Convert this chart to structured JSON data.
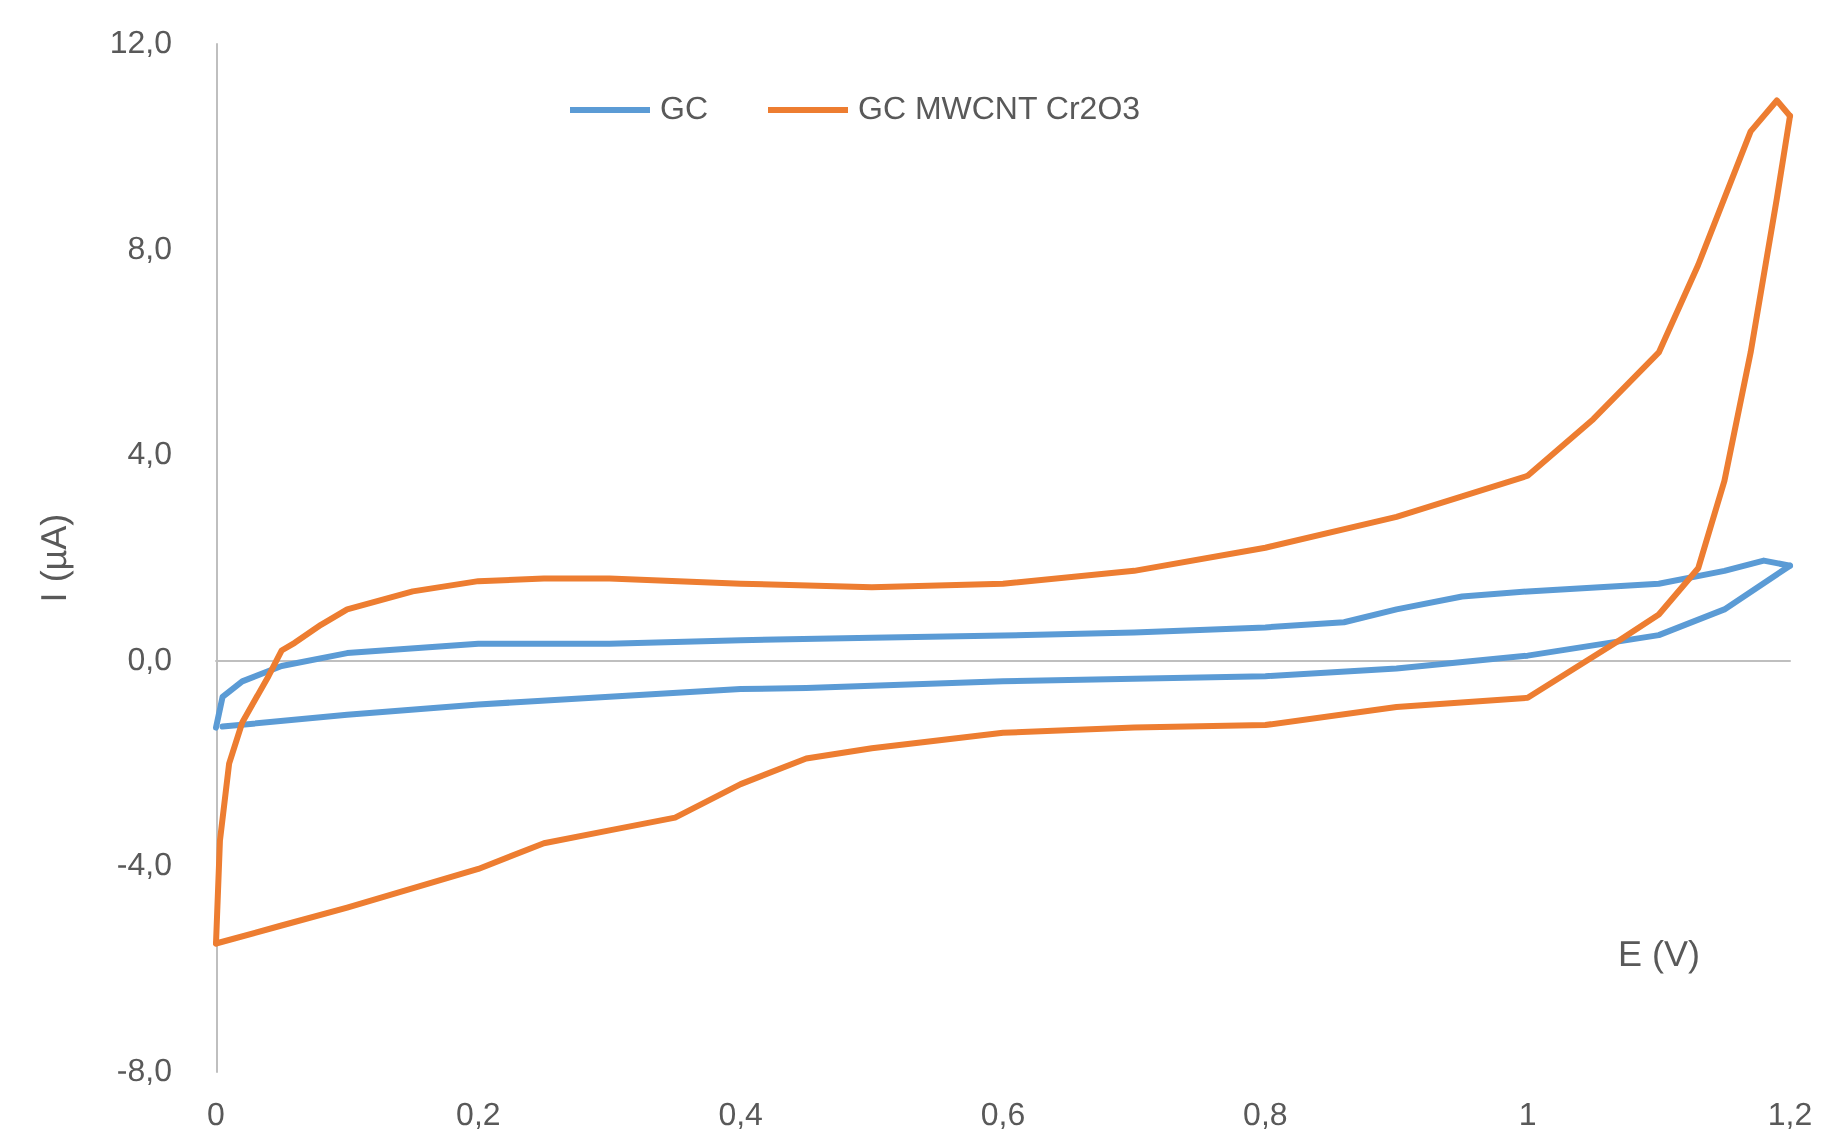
{
  "chart_data": {
    "type": "line",
    "xlabel": "E (V)",
    "ylabel": "I (µA)",
    "xlim": [
      0,
      1.2
    ],
    "ylim": [
      -8,
      12
    ],
    "xticks": [
      0,
      {
        "value": 0.2,
        "label": "0,2"
      },
      {
        "value": 0.4,
        "label": "0,4"
      },
      {
        "value": 0.6,
        "label": "0,6"
      },
      {
        "value": 0.8,
        "label": "0,8"
      },
      1,
      {
        "value": 1.2,
        "label": "1,2"
      }
    ],
    "yticks": [
      {
        "value": -8,
        "label": "-8,0"
      },
      {
        "value": -4,
        "label": "-4,0"
      },
      {
        "value": 0,
        "label": "0,0"
      },
      {
        "value": 4,
        "label": "4,0"
      },
      {
        "value": 8,
        "label": "8,0"
      },
      {
        "value": 12,
        "label": "12,0"
      }
    ],
    "legend": "top",
    "marker": "none",
    "line_style": "solid",
    "series": [
      {
        "name": "GC",
        "color": "#5b9bd5",
        "x": [
          0,
          0.005,
          0.02,
          0.05,
          0.1,
          0.2,
          0.3,
          0.4,
          0.5,
          0.6,
          0.7,
          0.8,
          0.86,
          0.9,
          0.95,
          1.0,
          1.1,
          1.15,
          1.18,
          1.2
        ],
        "values": [
          -1.3,
          -0.7,
          -0.4,
          -0.1,
          0.15,
          0.33,
          0.33,
          0.4,
          0.45,
          0.49,
          0.55,
          0.65,
          0.75,
          1.0,
          1.25,
          1.35,
          1.5,
          1.75,
          1.95,
          1.85
        ]
      },
      {
        "color": "#5b9bd5",
        "x": [
          1.2,
          1.15,
          1.1,
          1.05,
          1.0,
          0.9,
          0.8,
          0.6,
          0.45,
          0.4,
          0.3,
          0.2,
          0.1,
          0.005
        ],
        "values": [
          1.85,
          1.0,
          0.5,
          0.3,
          0.1,
          -0.15,
          -0.3,
          -0.4,
          -0.53,
          -0.55,
          -0.7,
          -0.85,
          -1.05,
          -1.28
        ]
      },
      {
        "name": "GC MWCNT Cr2O3",
        "color": "#ed7d31",
        "x": [
          0,
          0.003,
          0.01,
          0.02,
          0.04,
          0.05,
          0.06,
          0.08,
          0.1,
          0.15,
          0.2,
          0.25,
          0.3,
          0.4,
          0.5,
          0.6,
          0.7,
          0.8,
          0.9,
          0.95,
          1.0,
          1.05,
          1.1,
          1.13,
          1.15,
          1.17,
          1.19,
          1.2
        ],
        "values": [
          -5.5,
          -3.5,
          -2.0,
          -1.2,
          -0.3,
          0.2,
          0.35,
          0.7,
          1.0,
          1.35,
          1.55,
          1.6,
          1.6,
          1.5,
          1.43,
          1.5,
          1.75,
          2.2,
          2.8,
          3.2,
          3.6,
          4.7,
          6.0,
          7.7,
          9.0,
          10.3,
          10.9,
          10.6
        ]
      },
      {
        "color": "#ed7d31",
        "x": [
          1.2,
          1.19,
          1.17,
          1.15,
          1.13,
          1.1,
          1.07,
          1.045,
          1.0,
          0.9,
          0.8,
          0.7,
          0.6,
          0.5,
          0.45,
          0.4,
          0.35,
          0.3,
          0.25,
          0.2,
          0.1,
          0.05,
          0
        ],
        "values": [
          10.6,
          9.0,
          6.0,
          3.5,
          1.8,
          0.9,
          0.4,
          0,
          -0.72,
          -0.9,
          -1.25,
          -1.3,
          -1.4,
          -1.7,
          -1.9,
          -2.4,
          -3.05,
          -3.3,
          -3.55,
          -4.05,
          -4.8,
          -5.15,
          -5.5
        ]
      }
    ]
  }
}
